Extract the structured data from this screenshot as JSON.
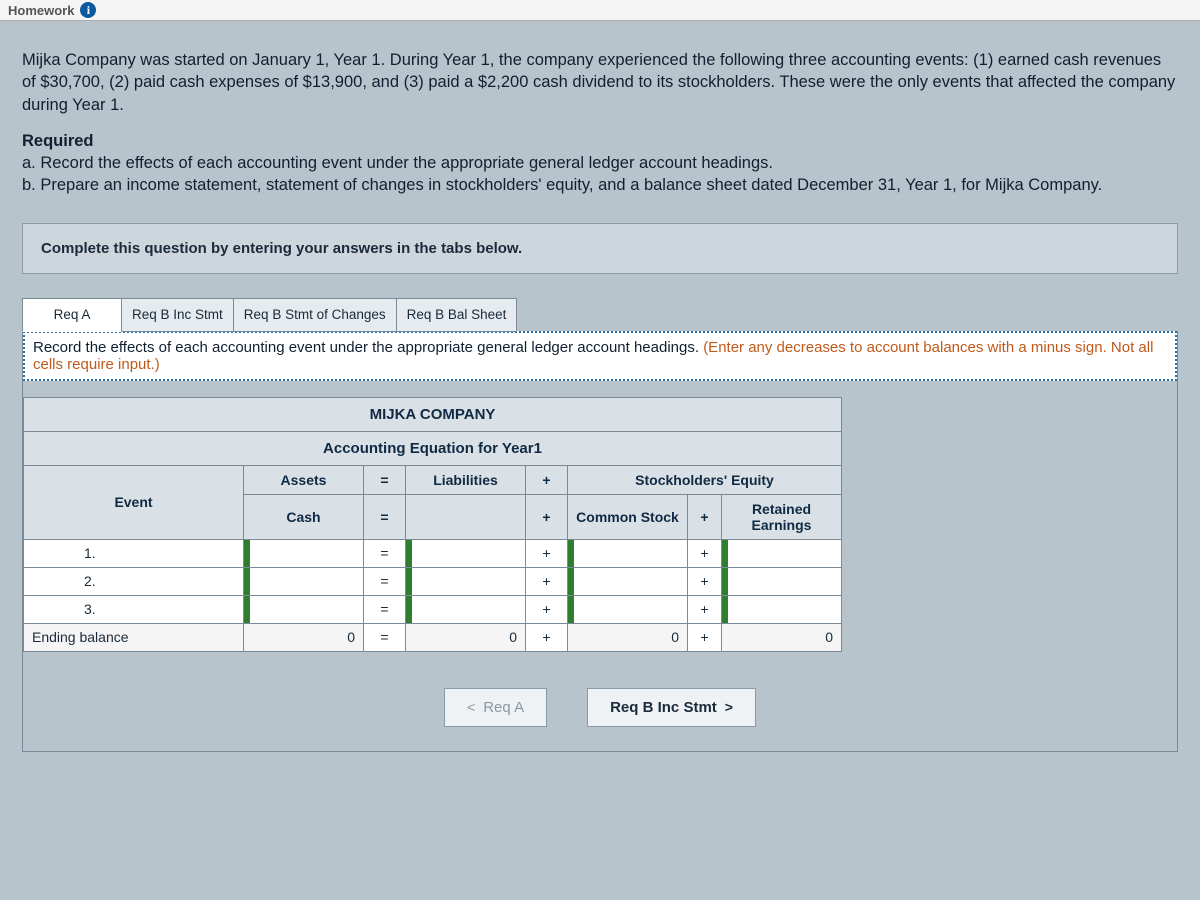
{
  "topbar": {
    "label": "Homework",
    "info_glyph": "i"
  },
  "problem": {
    "intro": "Mijka Company was started on January 1, Year 1. During Year 1, the company experienced the following three accounting events: (1) earned cash revenues of $30,700, (2) paid cash expenses of $13,900, and (3) paid a $2,200 cash dividend to its stockholders. These were the only events that affected the company during Year 1.",
    "required_heading": "Required",
    "req_a": "a. Record the effects of each accounting event under the appropriate general ledger account headings.",
    "req_b": "b. Prepare an income statement, statement of changes in stockholders' equity, and a balance sheet dated December 31, Year 1, for Mijka Company."
  },
  "instruction_box": "Complete this question by entering your answers in the tabs below.",
  "tabs": {
    "a": "Req A",
    "b_inc": "Req B Inc Stmt",
    "b_chg": "Req B Stmt of Changes",
    "b_bal": "Req B Bal Sheet"
  },
  "tab_instruction": {
    "main": "Record the effects of each accounting event under the appropriate general ledger account headings. ",
    "hint": "(Enter any decreases to account balances with a minus sign. Not all cells require input.)"
  },
  "table": {
    "company": "MIJKA COMPANY",
    "subtitle": "Accounting Equation for Year1",
    "headers": {
      "event": "Event",
      "assets": "Assets",
      "eq": "=",
      "liab": "Liabilities",
      "plus": "+",
      "se": "Stockholders' Equity",
      "cash": "Cash",
      "common": "Common Stock",
      "retained": "Retained Earnings"
    },
    "rows": [
      {
        "event": "1.",
        "cash": "",
        "liab": "",
        "common": "",
        "retained": ""
      },
      {
        "event": "2.",
        "cash": "",
        "liab": "",
        "common": "",
        "retained": ""
      },
      {
        "event": "3.",
        "cash": "",
        "liab": "",
        "common": "",
        "retained": ""
      }
    ],
    "ending": {
      "label": "Ending balance",
      "cash": "0",
      "liab": "0",
      "common": "0",
      "retained": "0"
    },
    "op_eq": "=",
    "op_plus": "+"
  },
  "nav": {
    "prev_label": "Req A",
    "prev_chev": "<",
    "next_label": "Req B Inc Stmt",
    "next_chev": ">"
  },
  "colors": {
    "page_bg": "#b8c4cc",
    "header_bg": "#d9e0e6",
    "border": "#7a8a96",
    "marker": "#2f7d2f",
    "hint": "#c05a1a"
  }
}
